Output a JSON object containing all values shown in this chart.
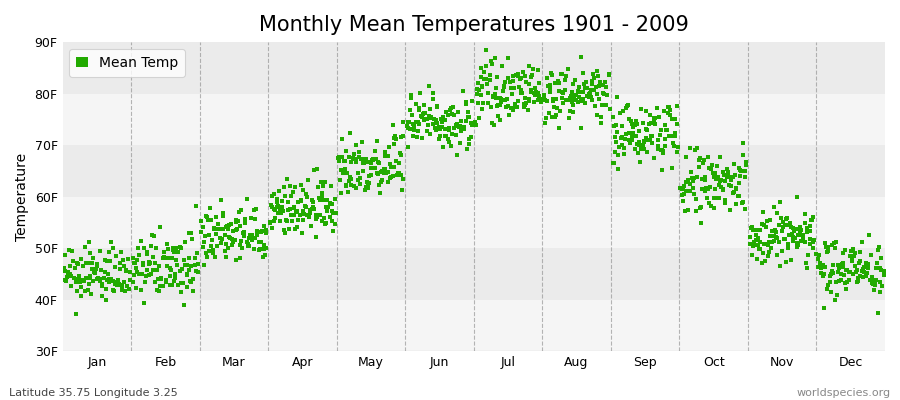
{
  "title": "Monthly Mean Temperatures 1901 - 2009",
  "ylabel": "Temperature",
  "bottom_left": "Latitude 35.75 Longitude 3.25",
  "bottom_right": "worldspecies.org",
  "legend_label": "Mean Temp",
  "dot_color": "#22aa00",
  "bg_color": "#ffffff",
  "plot_bg_color": "#f5f5f5",
  "hband_light": "#f5f5f5",
  "hband_dark": "#ebebeb",
  "dashed_color": "#888888",
  "ytick_labels": [
    "30F",
    "40F",
    "50F",
    "60F",
    "70F",
    "80F",
    "90F"
  ],
  "ytick_values": [
    30,
    40,
    50,
    60,
    70,
    80,
    90
  ],
  "ylim": [
    30,
    90
  ],
  "months": [
    "Jan",
    "Feb",
    "Mar",
    "Apr",
    "May",
    "Jun",
    "Jul",
    "Aug",
    "Sep",
    "Oct",
    "Nov",
    "Dec"
  ],
  "month_means_f": [
    44.5,
    46.0,
    52.0,
    57.5,
    66.0,
    74.5,
    80.0,
    79.5,
    72.0,
    62.0,
    52.0,
    46.0
  ],
  "month_stds_f": [
    2.5,
    3.0,
    2.8,
    2.8,
    3.2,
    2.8,
    2.5,
    2.5,
    3.0,
    3.5,
    3.0,
    2.8
  ],
  "month_trends_f": [
    0.005,
    0.004,
    0.005,
    0.005,
    0.006,
    0.005,
    0.005,
    0.005,
    0.005,
    0.006,
    0.005,
    0.004
  ],
  "n_years": 109,
  "start_year": 1901,
  "title_fontsize": 15,
  "label_fontsize": 10,
  "tick_fontsize": 9,
  "marker_size": 6
}
